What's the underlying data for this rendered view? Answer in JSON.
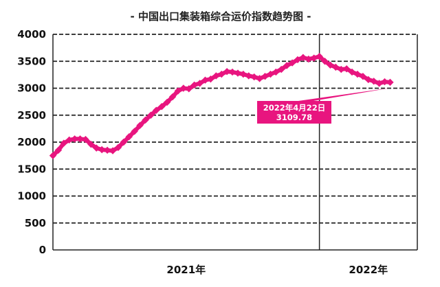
{
  "chart_data": {
    "type": "line",
    "title": "- 中国出口集装箱综合运价指数趋势图 -",
    "xlabel": "",
    "ylabel": "",
    "ylim": [
      0,
      4000
    ],
    "yticks": [
      0,
      500,
      1000,
      1500,
      2000,
      2500,
      3000,
      3500,
      4000
    ],
    "grid": true,
    "legend": "none",
    "x_categories": [
      "2021年",
      "2022年"
    ],
    "x_range_weeks": [
      0,
      67
    ],
    "year_boundary_week": 49,
    "marker": "diamond",
    "color": "#e8157f",
    "series": [
      {
        "x": [
          0,
          1,
          2,
          3,
          4,
          5,
          6,
          7,
          8,
          9,
          10,
          11,
          12,
          13,
          14,
          15,
          16,
          17,
          18,
          19,
          20,
          21,
          22,
          23,
          24,
          25,
          26,
          27,
          28,
          29,
          30,
          31,
          32,
          33,
          34,
          35,
          36,
          37,
          38,
          39,
          40,
          41,
          42,
          43,
          44,
          45,
          46,
          47,
          48,
          49,
          50,
          51,
          52,
          53,
          54,
          55,
          56,
          57,
          58,
          59,
          60,
          61,
          62
        ],
        "y": [
          1750,
          1850,
          1980,
          2040,
          2060,
          2060,
          2050,
          1960,
          1890,
          1860,
          1850,
          1840,
          1900,
          2000,
          2100,
          2200,
          2310,
          2410,
          2500,
          2590,
          2660,
          2740,
          2840,
          2950,
          3000,
          2990,
          3060,
          3090,
          3150,
          3170,
          3230,
          3260,
          3310,
          3300,
          3280,
          3260,
          3230,
          3210,
          3180,
          3220,
          3260,
          3300,
          3350,
          3420,
          3470,
          3530,
          3570,
          3540,
          3560,
          3590,
          3500,
          3430,
          3390,
          3350,
          3360,
          3300,
          3260,
          3220,
          3160,
          3130,
          3090,
          3120,
          3110
        ]
      }
    ],
    "annotation": {
      "date": "2022年4月22日",
      "value": "3109.78"
    }
  }
}
